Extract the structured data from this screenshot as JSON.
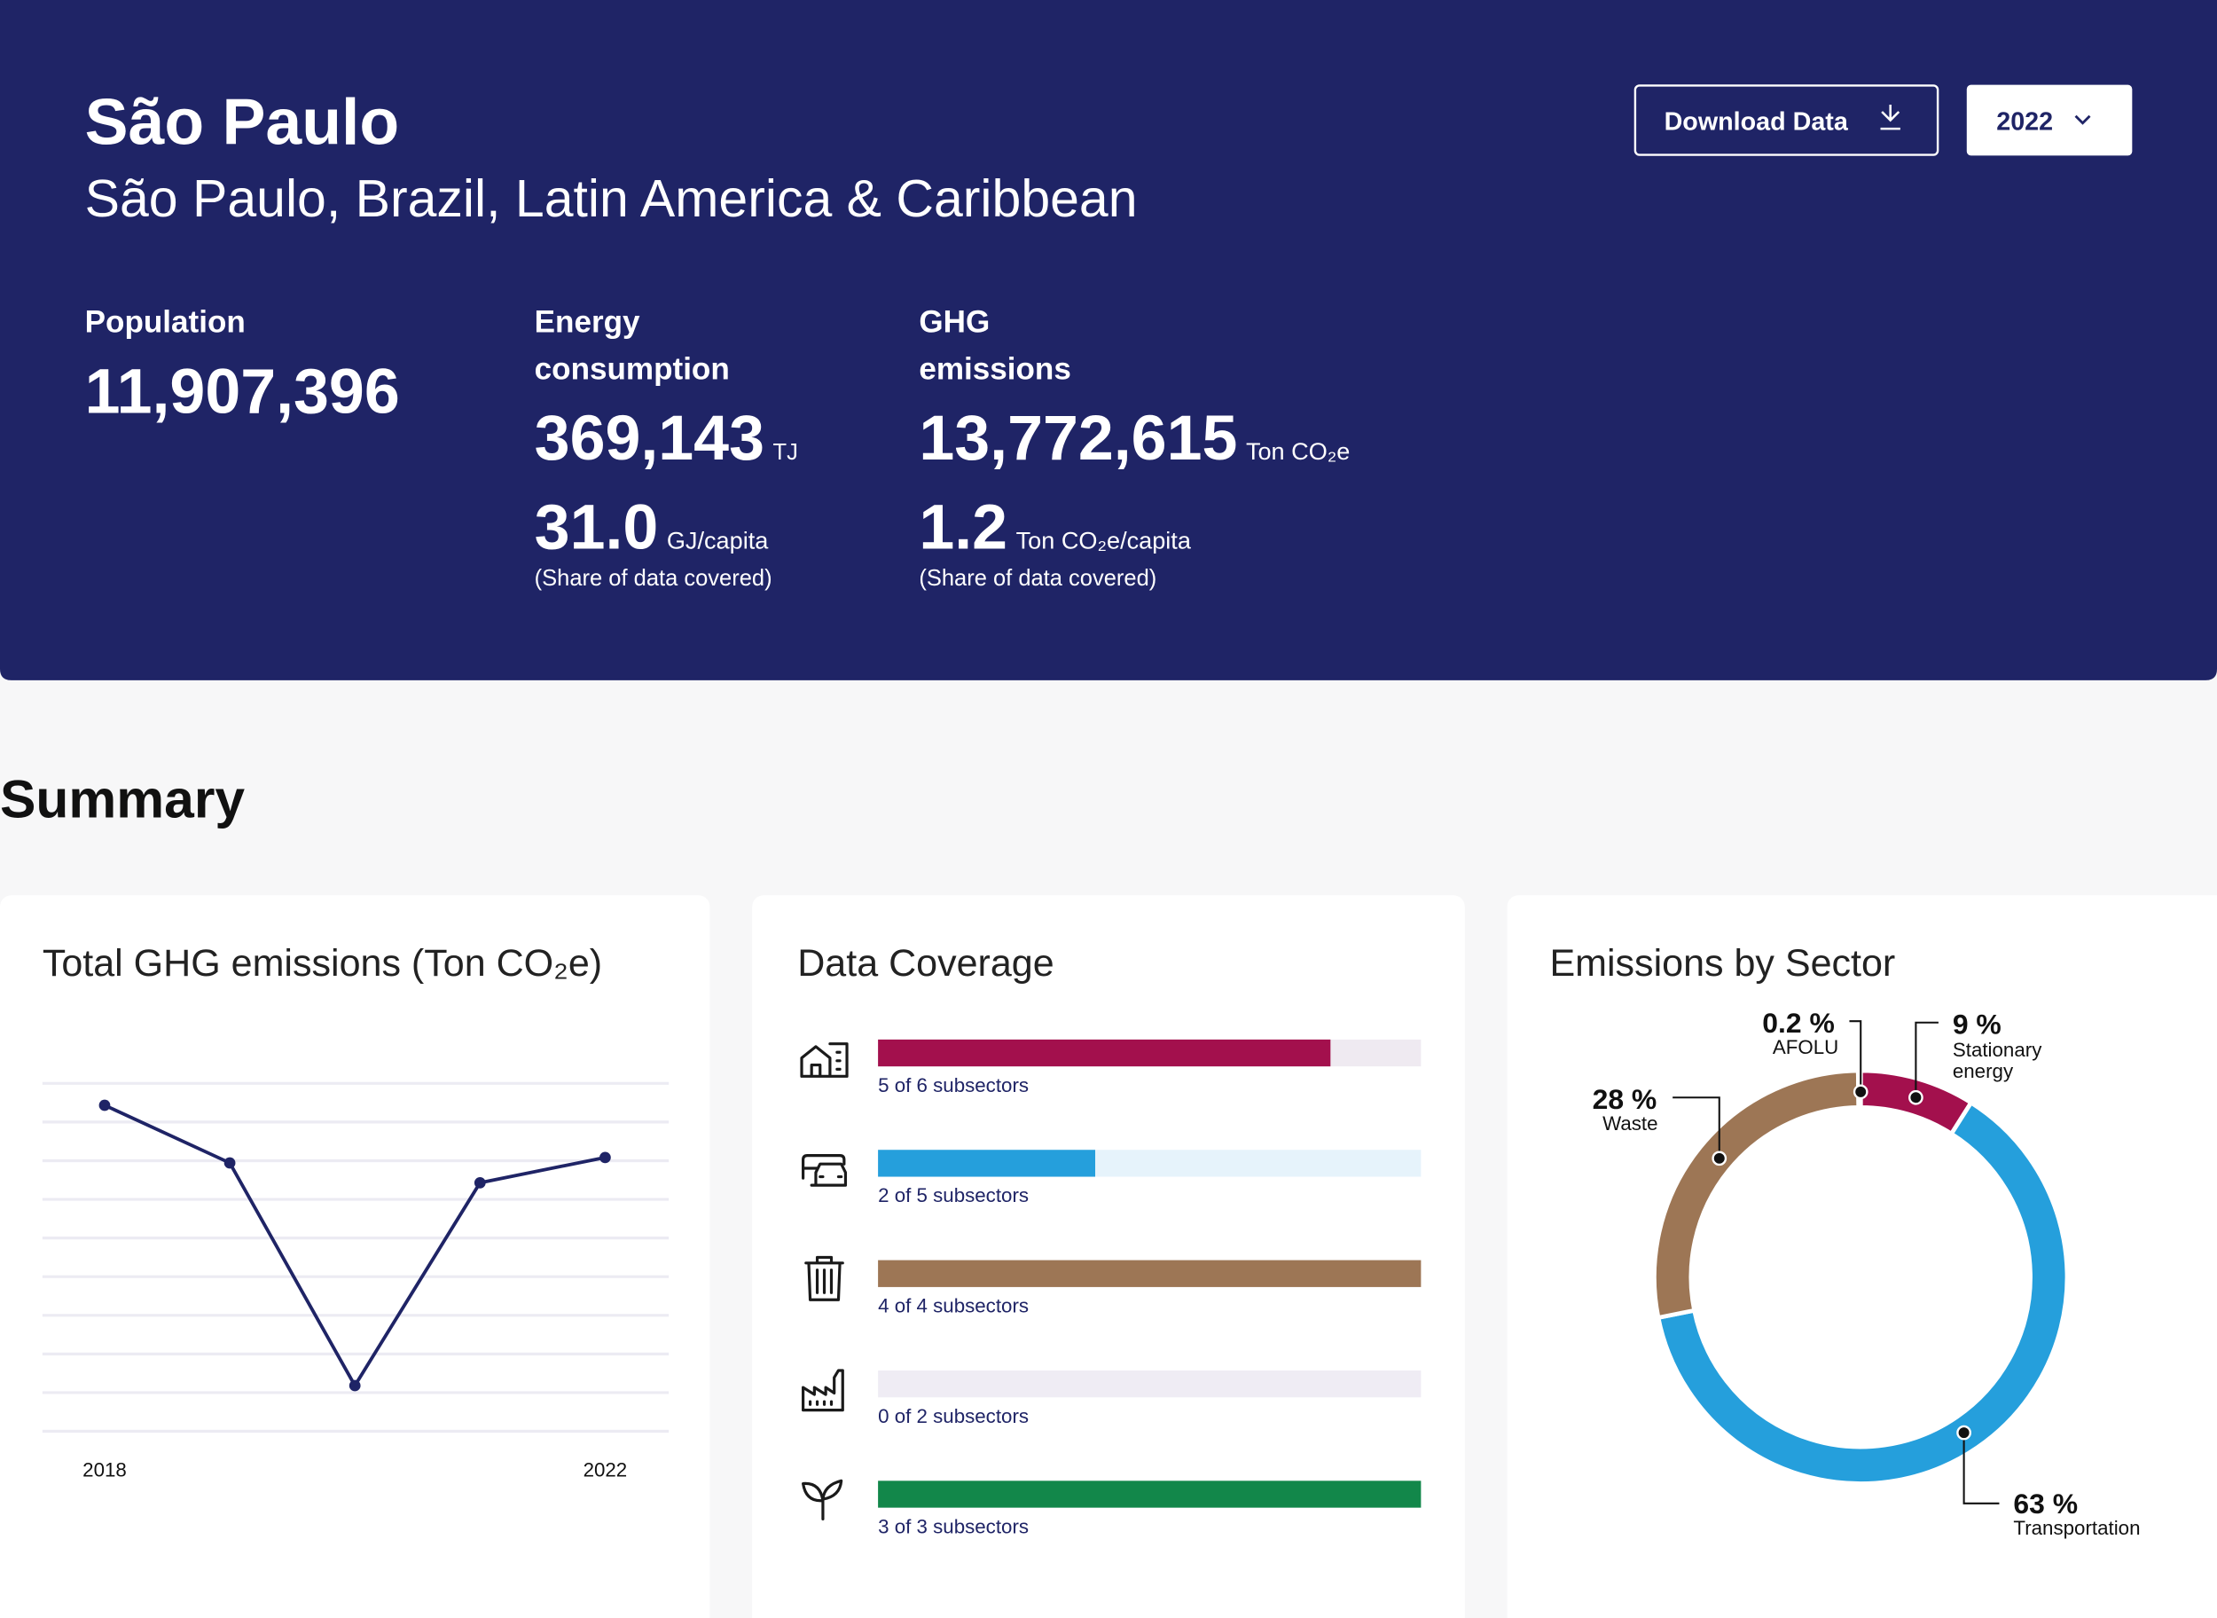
{
  "header": {
    "title": "São Paulo",
    "subtitle": "São Paulo, Brazil, Latin America & Caribbean",
    "download_button": "Download Data",
    "year_button": "2022"
  },
  "stats": {
    "population": {
      "label": "Population",
      "value": "11,907,396"
    },
    "energy": {
      "label_lines": [
        "Energy",
        "consumption"
      ],
      "total": "369,143",
      "total_unit": "TJ",
      "per_capita": "31.0",
      "per_capita_unit": "GJ/capita",
      "note": "(Share of data covered)"
    },
    "ghg": {
      "label_lines": [
        "GHG",
        "emissions"
      ],
      "total": "13,772,615",
      "total_unit": "Ton CO₂e",
      "per_capita": "1.2",
      "per_capita_unit": "Ton CO₂e/capita",
      "note": "(Share of data covered)"
    }
  },
  "summary_title": "Summary",
  "chart_data": [
    {
      "type": "line",
      "title": "Total GHG emissions (Ton CO₂e)",
      "categories": [
        "2018",
        null,
        null,
        null,
        "2022"
      ],
      "values": [
        16400000,
        13500000,
        2300000,
        12500000,
        13772615
      ],
      "color": "#1f2466",
      "ylim": [
        0,
        17500000
      ],
      "grid": true
    },
    {
      "type": "progress",
      "title": "Data Coverage",
      "rows": [
        {
          "label": "5 of 6 subsectors",
          "covered": 5,
          "total": 6,
          "color": "#a3104d",
          "track_color": "#efeaf1"
        },
        {
          "label": "2 of 5 subsectors",
          "covered": 2,
          "total": 5,
          "color": "#259fdc",
          "track_color": "#e6f3fb"
        },
        {
          "label": "4 of 4 subsectors",
          "covered": 4,
          "total": 4,
          "color": "#9d7655",
          "track_color": "#efe8e2"
        },
        {
          "label": "0 of 2 subsectors",
          "covered": 0,
          "total": 2,
          "color": "#8a7fa8",
          "track_color": "#efecf4"
        },
        {
          "label": "3 of 3 subsectors",
          "covered": 3,
          "total": 3,
          "color": "#12874a",
          "track_color": "#e3f1e9"
        }
      ]
    },
    {
      "type": "donut",
      "title": "Emissions by Sector",
      "categories": [
        "Stationary energy",
        "Transportation",
        "Waste",
        "AFOLU"
      ],
      "values": [
        9,
        63,
        28,
        0.2
      ],
      "value_labels": [
        "9 %",
        "63 %",
        "28 %",
        "0.2 %"
      ],
      "colors": [
        "#a3104d",
        "#259fdc",
        "#9d7655",
        "#12874a"
      ]
    }
  ]
}
